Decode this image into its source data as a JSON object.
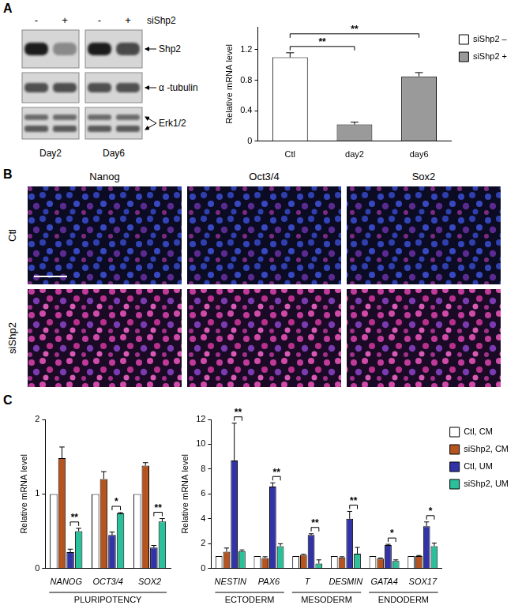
{
  "panel_labels": [
    "A",
    "B",
    "C"
  ],
  "blot": {
    "treatment_label": "siShp2",
    "lanes": [
      "-",
      "+"
    ],
    "panels": [
      "Day2",
      "Day6"
    ],
    "bands": [
      "Shp2",
      "α -tubulin",
      "Erk1/2"
    ]
  },
  "immunofluorescence": {
    "columns": [
      "Nanog",
      "Oct3/4",
      "Sox2"
    ],
    "rows": [
      "Ctl",
      "siShp2"
    ]
  },
  "chart_data": [
    {
      "type": "bar",
      "y_label": "Relative mRNA level",
      "categories": [
        "Ctl",
        "day2",
        "day6"
      ],
      "series": [
        {
          "name": "siShp2 –",
          "color": "#ffffff",
          "values": [
            1.1,
            null,
            null
          ],
          "errors": [
            0.06,
            null,
            null
          ]
        },
        {
          "name": "siShp2 +",
          "color": "#9a9a9a",
          "values": [
            null,
            0.22,
            0.85
          ],
          "errors": [
            null,
            0.03,
            0.05
          ]
        }
      ],
      "ylim": [
        0,
        1.5
      ],
      "yticks": [
        0,
        0.4,
        0.8,
        1.2
      ],
      "grid": false,
      "legend": "top right",
      "annotations": [
        {
          "label": "**",
          "between": [
            {
              "category": "Ctl",
              "series": "siShp2 –"
            },
            {
              "category": "day2",
              "series": "siShp2 +"
            }
          ]
        },
        {
          "label": "**",
          "between": [
            {
              "category": "Ctl",
              "series": "siShp2 –"
            },
            {
              "category": "day6",
              "series": "siShp2 +"
            }
          ]
        }
      ]
    },
    {
      "type": "bar",
      "y_label": "Relative mRNA level",
      "categories": [
        "NANOG",
        "OCT3/4",
        "SOX2"
      ],
      "groups": [
        {
          "label": "PLURIPOTENCY",
          "categories": [
            "NANOG",
            "OCT3/4",
            "SOX2"
          ]
        }
      ],
      "series": [
        {
          "name": "Ctl, CM",
          "color": "#ffffff",
          "values": [
            1,
            1,
            1
          ]
        },
        {
          "name": "siShp2, CM",
          "color": "#b5541f",
          "values": [
            1.48,
            1.2,
            1.38
          ],
          "errors": [
            0.15,
            0.1,
            0.04
          ]
        },
        {
          "name": "Ctl, UM",
          "color": "#3333a8",
          "values": [
            0.22,
            0.45,
            0.28
          ],
          "errors": [
            0.04,
            0.04,
            0.03
          ]
        },
        {
          "name": "siShp2, UM",
          "color": "#2bbf9a",
          "values": [
            0.5,
            0.74,
            0.63
          ],
          "errors": [
            0.04,
            0.01,
            0.04
          ]
        }
      ],
      "ylim": [
        0,
        2
      ],
      "yticks": [
        0,
        1,
        2
      ],
      "grid": false,
      "annotations": [
        {
          "label": "**",
          "between": [
            {
              "category": "NANOG",
              "series": "Ctl, UM"
            },
            {
              "category": "NANOG",
              "series": "siShp2, UM"
            }
          ]
        },
        {
          "label": "*",
          "between": [
            {
              "category": "OCT3/4",
              "series": "Ctl, UM"
            },
            {
              "category": "OCT3/4",
              "series": "siShp2, UM"
            }
          ]
        },
        {
          "label": "**",
          "between": [
            {
              "category": "SOX2",
              "series": "Ctl, UM"
            },
            {
              "category": "SOX2",
              "series": "siShp2, UM"
            }
          ]
        }
      ]
    },
    {
      "type": "bar",
      "y_label": "Relative mRNA level",
      "categories": [
        "NESTIN",
        "PAX6",
        "T",
        "DESMIN",
        "GATA4",
        "SOX17"
      ],
      "groups": [
        {
          "label": "ECTODERM",
          "categories": [
            "NESTIN",
            "PAX6"
          ]
        },
        {
          "label": "MESODERM",
          "categories": [
            "T",
            "DESMIN"
          ]
        },
        {
          "label": "ENDODERM",
          "categories": [
            "GATA4",
            "SOX17"
          ]
        }
      ],
      "series": [
        {
          "name": "Ctl, CM",
          "color": "#ffffff",
          "values": [
            1,
            1,
            1,
            1,
            1,
            1
          ]
        },
        {
          "name": "siShp2, CM",
          "color": "#b5541f",
          "values": [
            1.35,
            0.85,
            1.1,
            0.9,
            0.8,
            1.0
          ],
          "errors": [
            0.3,
            0.1,
            0.05,
            0.05,
            0.05,
            0.05
          ]
        },
        {
          "name": "Ctl, UM",
          "color": "#3333a8",
          "values": [
            8.7,
            6.6,
            2.7,
            4.0,
            1.9,
            3.4
          ],
          "errors": [
            3.0,
            0.3,
            0.1,
            0.6,
            0.05,
            0.35
          ]
        },
        {
          "name": "siShp2, UM",
          "color": "#2bbf9a",
          "values": [
            1.4,
            1.8,
            0.4,
            1.2,
            0.6,
            1.8
          ],
          "errors": [
            0.1,
            0.2,
            0.3,
            0.5,
            0.1,
            0.25
          ]
        }
      ],
      "ylim": [
        0,
        12
      ],
      "yticks": [
        0,
        2,
        4,
        6,
        8,
        10,
        12
      ],
      "grid": false,
      "legend": "top right",
      "annotations": [
        {
          "label": "**",
          "between": [
            {
              "category": "NESTIN",
              "series": "Ctl, UM"
            },
            {
              "category": "NESTIN",
              "series": "siShp2, UM"
            }
          ]
        },
        {
          "label": "**",
          "between": [
            {
              "category": "PAX6",
              "series": "Ctl, UM"
            },
            {
              "category": "PAX6",
              "series": "siShp2, UM"
            }
          ]
        },
        {
          "label": "**",
          "between": [
            {
              "category": "T",
              "series": "Ctl, UM"
            },
            {
              "category": "T",
              "series": "siShp2, UM"
            }
          ]
        },
        {
          "label": "**",
          "between": [
            {
              "category": "DESMIN",
              "series": "Ctl, UM"
            },
            {
              "category": "DESMIN",
              "series": "siShp2, UM"
            }
          ]
        },
        {
          "label": "*",
          "between": [
            {
              "category": "GATA4",
              "series": "Ctl, UM"
            },
            {
              "category": "GATA4",
              "series": "siShp2, UM"
            }
          ]
        },
        {
          "label": "*",
          "between": [
            {
              "category": "SOX17",
              "series": "Ctl, UM"
            },
            {
              "category": "SOX17",
              "series": "siShp2, UM"
            }
          ]
        }
      ]
    }
  ]
}
